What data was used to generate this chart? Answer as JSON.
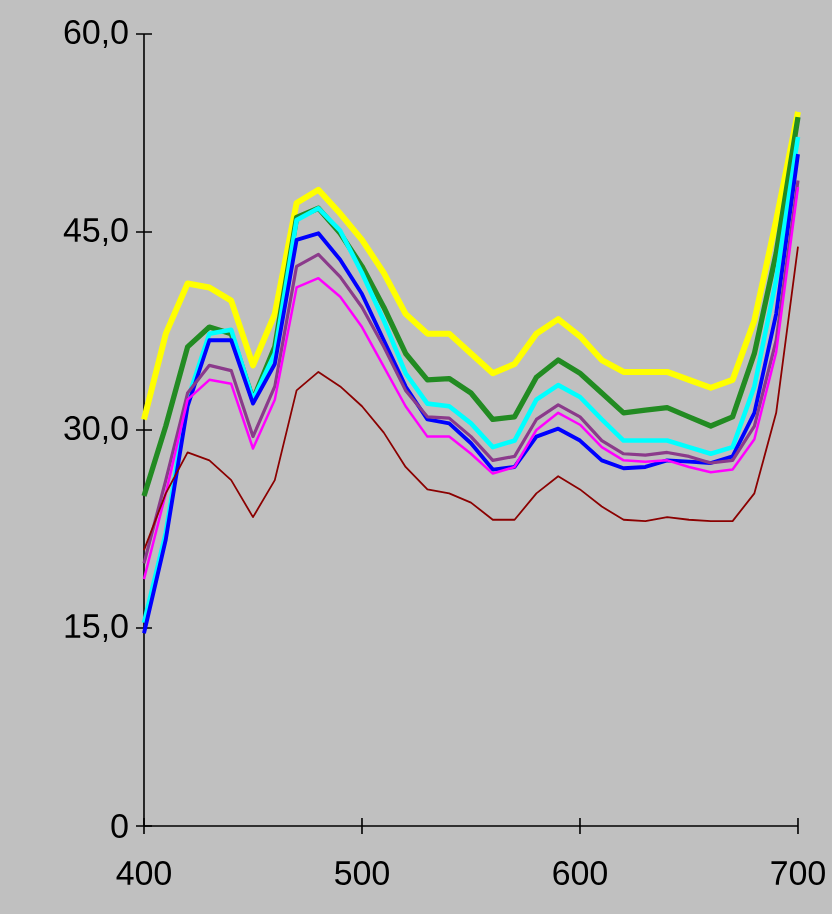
{
  "chart_data": {
    "type": "line",
    "x": [
      400,
      410,
      420,
      430,
      440,
      450,
      460,
      470,
      480,
      490,
      500,
      510,
      520,
      530,
      540,
      550,
      560,
      570,
      580,
      590,
      600,
      610,
      620,
      630,
      640,
      650,
      660,
      670,
      680,
      690,
      700
    ],
    "xlim": [
      400,
      700
    ],
    "ylim": [
      0,
      60
    ],
    "xticks": [
      400,
      500,
      600,
      700
    ],
    "yticks": [
      {
        "value": 0,
        "label": "0"
      },
      {
        "value": 15,
        "label": "15,0"
      },
      {
        "value": 30,
        "label": "30,0"
      },
      {
        "value": 45,
        "label": "45,0"
      },
      {
        "value": 60,
        "label": "60,0"
      }
    ],
    "series": [
      {
        "color": "#ffff00",
        "values": [
          30.8,
          37.3,
          41.1,
          40.8,
          39.8,
          34.9,
          38.8,
          47.2,
          48.2,
          46.4,
          44.4,
          41.9,
          38.8,
          37.3,
          37.3,
          35.8,
          34.3,
          35.0,
          37.3,
          38.4,
          37.1,
          35.3,
          34.4,
          34.4,
          34.4,
          33.8,
          33.2,
          33.8,
          38.3,
          45.9,
          54.1
        ]
      },
      {
        "color": "#228b22",
        "values": [
          25.0,
          30.3,
          36.3,
          37.8,
          37.3,
          32.3,
          36.3,
          46.1,
          46.8,
          44.9,
          42.4,
          39.3,
          35.8,
          33.8,
          33.9,
          32.8,
          30.8,
          31.0,
          34.0,
          35.3,
          34.3,
          32.8,
          31.3,
          31.5,
          31.7,
          31.0,
          30.3,
          31.0,
          35.8,
          43.4,
          53.7
        ]
      },
      {
        "color": "#00ffff",
        "values": [
          15.4,
          22.2,
          32.3,
          37.3,
          37.6,
          32.3,
          35.8,
          45.9,
          46.8,
          45.1,
          41.9,
          38.3,
          34.3,
          32.0,
          31.8,
          30.5,
          28.7,
          29.2,
          32.3,
          33.4,
          32.5,
          30.8,
          29.2,
          29.2,
          29.2,
          28.7,
          28.2,
          28.7,
          33.3,
          41.4,
          52.2
        ]
      },
      {
        "color": "#0000ff",
        "values": [
          14.6,
          21.7,
          31.8,
          36.8,
          36.8,
          32.0,
          35.0,
          44.4,
          44.9,
          42.9,
          40.3,
          36.8,
          33.3,
          30.8,
          30.5,
          29.0,
          27.0,
          27.2,
          29.5,
          30.1,
          29.2,
          27.7,
          27.1,
          27.2,
          27.7,
          27.6,
          27.5,
          28.0,
          31.3,
          38.8,
          50.9
        ]
      },
      {
        "color": "#8b3a8b",
        "values": [
          19.9,
          26.2,
          32.8,
          34.9,
          34.5,
          29.5,
          33.3,
          42.4,
          43.3,
          41.6,
          39.3,
          36.3,
          33.0,
          31.0,
          30.9,
          29.5,
          27.7,
          28.0,
          30.8,
          31.9,
          31.0,
          29.2,
          28.2,
          28.1,
          28.3,
          28.0,
          27.5,
          27.7,
          30.3,
          36.8,
          48.9
        ]
      },
      {
        "color": "#ff00ff",
        "values": [
          18.7,
          25.2,
          32.3,
          33.8,
          33.5,
          28.6,
          32.3,
          40.8,
          41.5,
          40.1,
          37.8,
          34.8,
          31.8,
          29.5,
          29.5,
          28.2,
          26.7,
          27.2,
          30.0,
          31.3,
          30.4,
          28.7,
          27.7,
          27.6,
          27.7,
          27.2,
          26.8,
          27.0,
          29.3,
          35.9,
          48.4
        ]
      },
      {
        "color": "#8b0000",
        "values": [
          20.9,
          25.2,
          28.3,
          27.7,
          26.2,
          23.4,
          26.2,
          33.0,
          34.4,
          33.3,
          31.8,
          29.8,
          27.2,
          25.5,
          25.2,
          24.5,
          23.2,
          23.2,
          25.2,
          26.5,
          25.5,
          24.2,
          23.2,
          23.1,
          23.4,
          23.2,
          23.1,
          23.1,
          25.2,
          31.3,
          43.9
        ]
      }
    ]
  }
}
